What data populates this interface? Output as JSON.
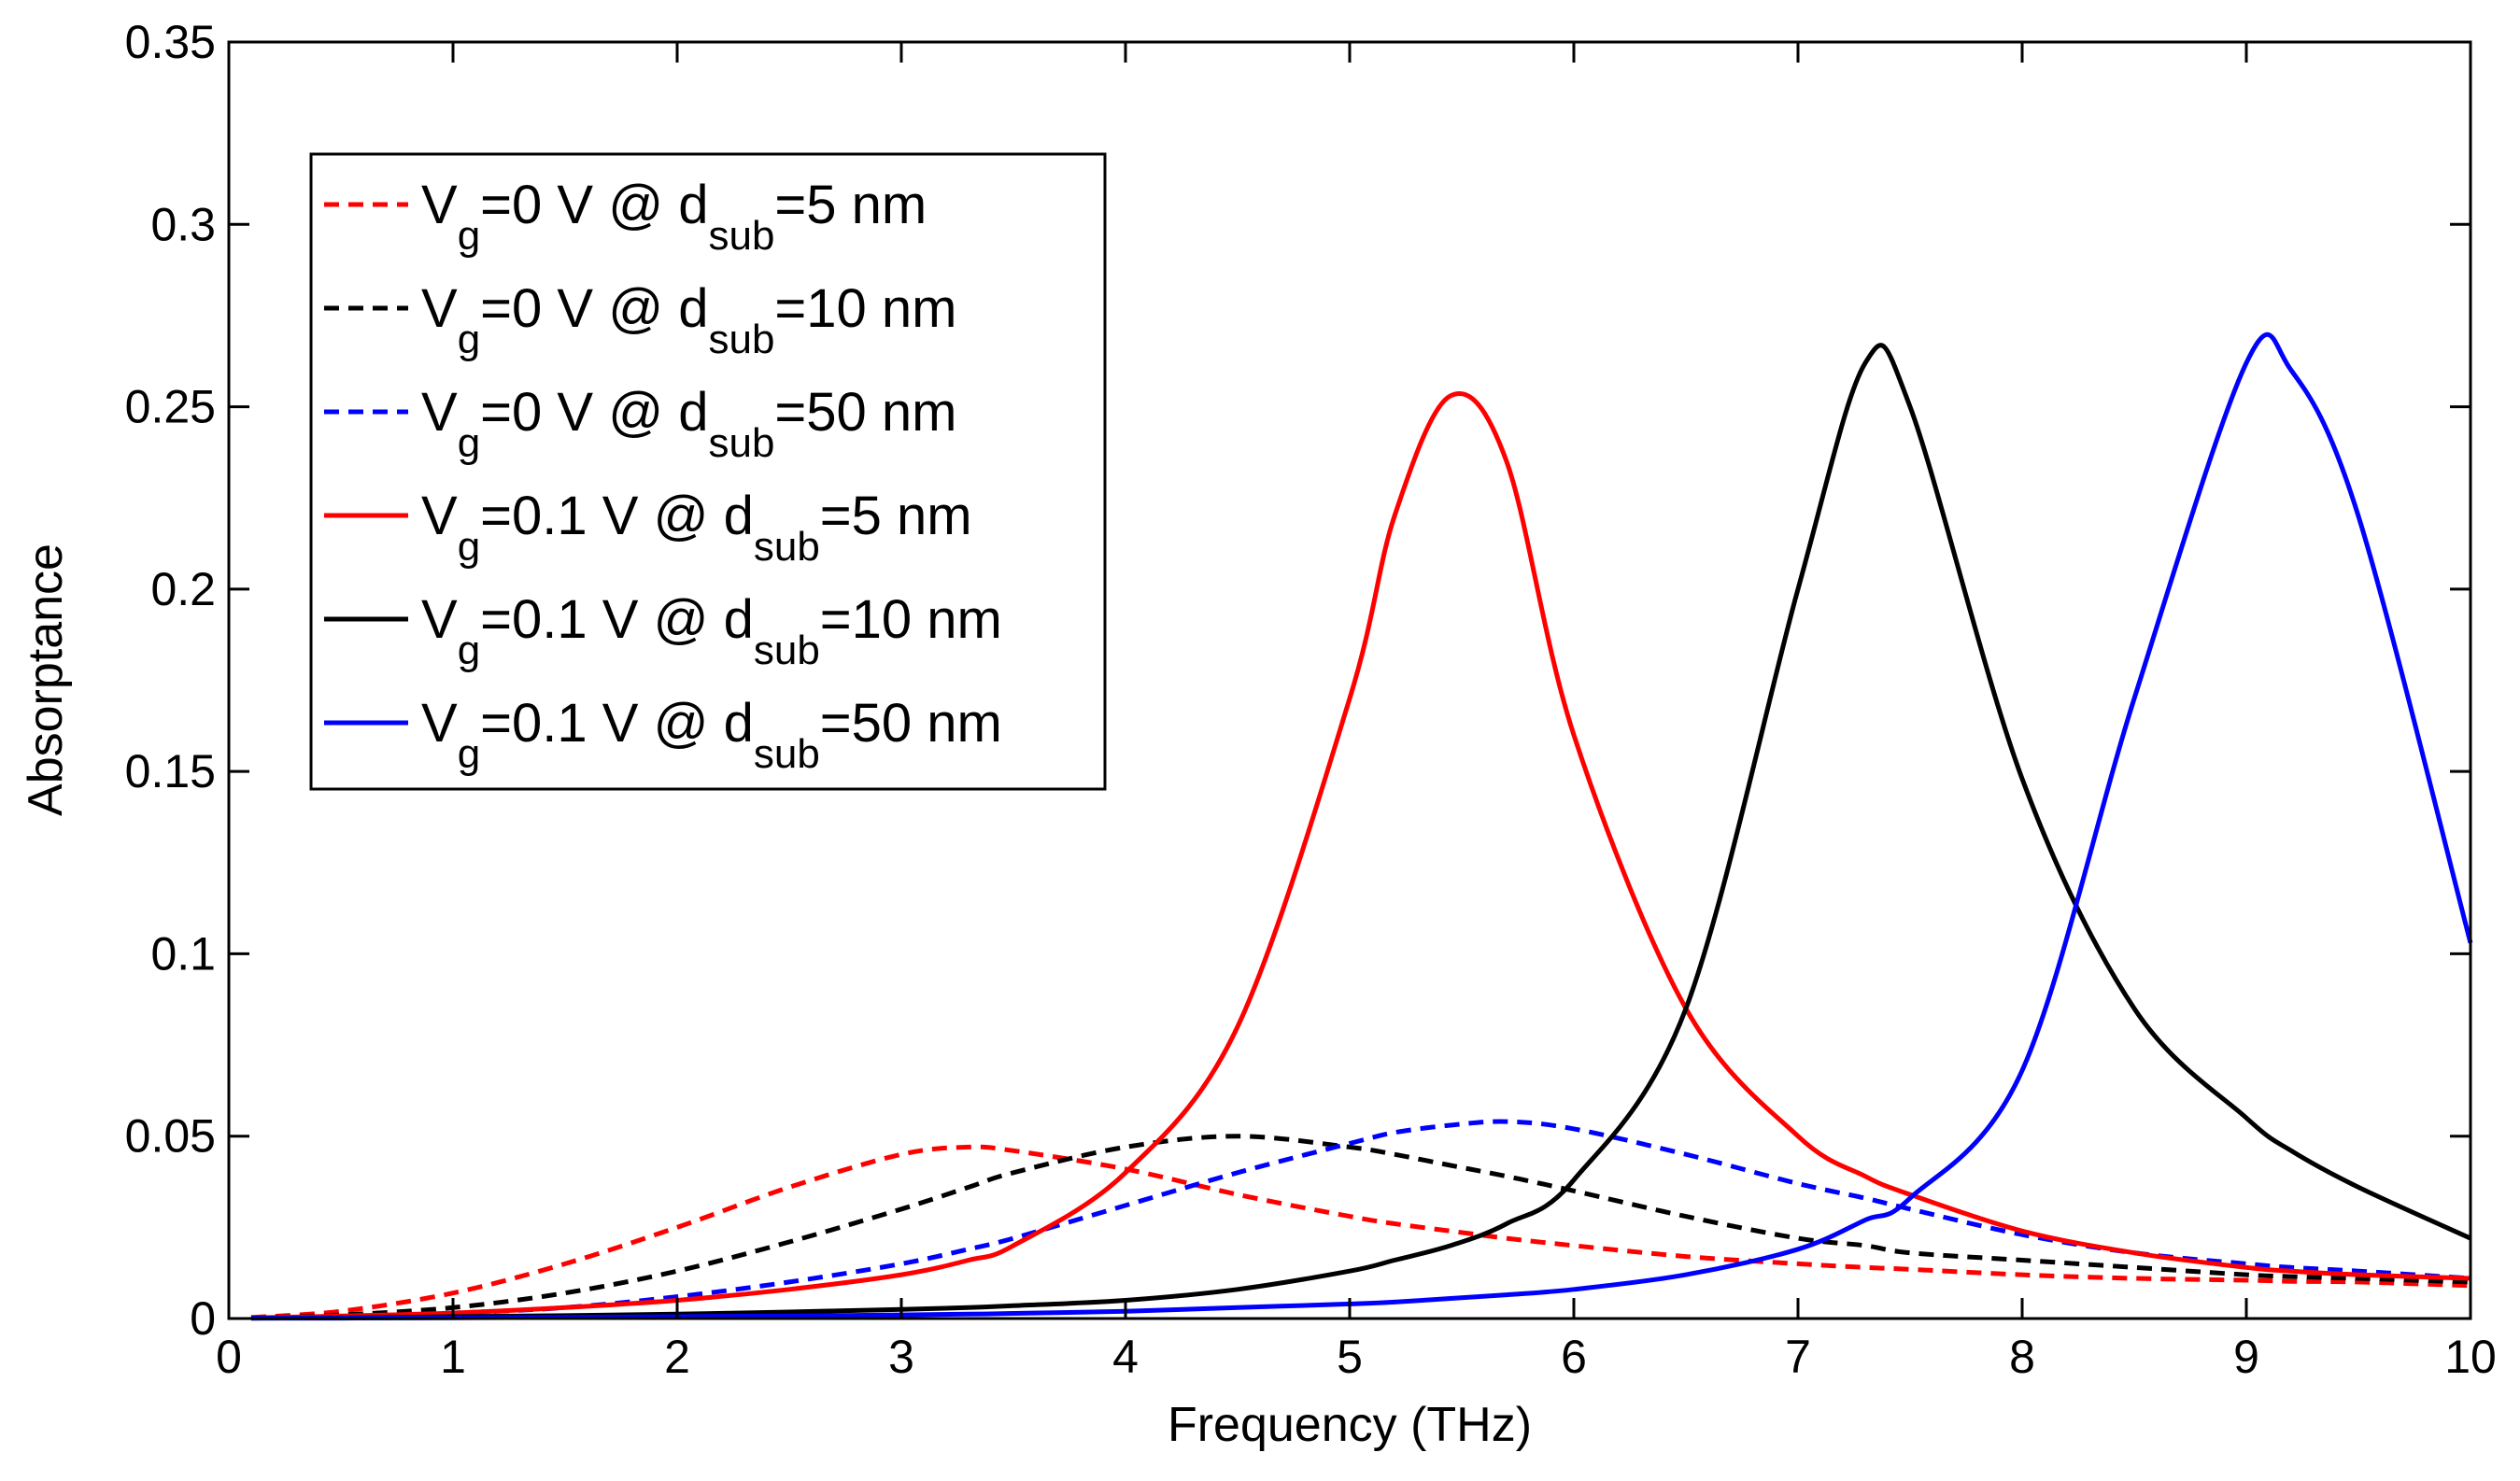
{
  "chart_data": {
    "type": "line",
    "title": "",
    "xlabel": "Frequency (THz)",
    "ylabel": "Absorptance",
    "xlim": [
      0,
      10
    ],
    "ylim": [
      0,
      0.35
    ],
    "xticks": [
      0,
      1,
      2,
      3,
      4,
      5,
      6,
      7,
      8,
      9,
      10
    ],
    "yticks": [
      0,
      0.05,
      0.1,
      0.15,
      0.2,
      0.25,
      0.3,
      0.35
    ],
    "xtick_labels": [
      "0",
      "1",
      "2",
      "3",
      "4",
      "5",
      "6",
      "7",
      "8",
      "9",
      "10"
    ],
    "ytick_labels": [
      "0",
      "0.05",
      "0.1",
      "0.15",
      "0.2",
      "0.25",
      "0.3",
      "0.35"
    ],
    "grid": false,
    "legend_position": "top-left",
    "x": [
      0.1,
      0.5,
      1,
      1.5,
      2,
      2.5,
      3,
      3.3,
      3.5,
      4,
      4.5,
      5,
      5.2,
      5.45,
      5.7,
      6,
      6.5,
      7,
      7.3,
      7.5,
      8,
      8.5,
      9,
      9.2,
      9.5,
      10
    ],
    "series": [
      {
        "name": "Vg=0 V @ dsub=5 nm",
        "color": "#ff0000",
        "style": "dashed",
        "values": [
          0.0003,
          0.002,
          0.007,
          0.015,
          0.025,
          0.036,
          0.045,
          0.047,
          0.046,
          0.041,
          0.034,
          0.028,
          0.026,
          0.024,
          0.022,
          0.02,
          0.017,
          0.015,
          0.014,
          0.0135,
          0.012,
          0.011,
          0.0105,
          0.0102,
          0.01,
          0.009
        ]
      },
      {
        "name": "Vg=0 V @ dsub=10 nm",
        "color": "#000000",
        "style": "dashed",
        "values": [
          0.0002,
          0.001,
          0.003,
          0.007,
          0.013,
          0.021,
          0.03,
          0.036,
          0.04,
          0.047,
          0.05,
          0.047,
          0.045,
          0.042,
          0.039,
          0.035,
          0.028,
          0.022,
          0.02,
          0.018,
          0.016,
          0.014,
          0.012,
          0.0115,
          0.011,
          0.01
        ]
      },
      {
        "name": "Vg=0 V @ dsub=50 nm",
        "color": "#0000ff",
        "style": "dashed",
        "values": [
          0.0001,
          0.0005,
          0.0015,
          0.003,
          0.006,
          0.01,
          0.015,
          0.019,
          0.022,
          0.031,
          0.04,
          0.048,
          0.051,
          0.053,
          0.054,
          0.052,
          0.045,
          0.037,
          0.033,
          0.03,
          0.023,
          0.018,
          0.015,
          0.014,
          0.013,
          0.011
        ]
      },
      {
        "name": "Vg=0.1 V @  dsub=5 nm",
        "color": "#ff0000",
        "style": "solid",
        "values": [
          0.0002,
          0.0007,
          0.0015,
          0.003,
          0.005,
          0.008,
          0.012,
          0.016,
          0.02,
          0.04,
          0.08,
          0.17,
          0.22,
          0.253,
          0.235,
          0.16,
          0.085,
          0.05,
          0.039,
          0.034,
          0.024,
          0.018,
          0.014,
          0.013,
          0.012,
          0.011
        ]
      },
      {
        "name": "Vg=0.1 V @  dsub=10 nm",
        "color": "#000000",
        "style": "solid",
        "values": [
          0.0001,
          0.0002,
          0.0005,
          0.0008,
          0.0012,
          0.0018,
          0.0025,
          0.003,
          0.0035,
          0.005,
          0.008,
          0.013,
          0.016,
          0.02,
          0.026,
          0.038,
          0.085,
          0.2,
          0.262,
          0.25,
          0.148,
          0.085,
          0.055,
          0.046,
          0.036,
          0.022
        ]
      },
      {
        "name": "Vg=0.1 V @  dsub=50 nm",
        "color": "#0000ff",
        "style": "solid",
        "values": [
          0.0001,
          0.0001,
          0.0002,
          0.0003,
          0.0005,
          0.0007,
          0.001,
          0.0012,
          0.0014,
          0.002,
          0.003,
          0.004,
          0.0045,
          0.0055,
          0.0065,
          0.008,
          0.012,
          0.019,
          0.027,
          0.033,
          0.068,
          0.17,
          0.262,
          0.26,
          0.22,
          0.103
        ]
      }
    ],
    "legend": [
      {
        "prefix": "V",
        "sub1": "g",
        "mid": "=0 V @ d",
        "sub2": "sub",
        "suffix": "=5 nm"
      },
      {
        "prefix": "V",
        "sub1": "g",
        "mid": "=0 V @ d",
        "sub2": "sub",
        "suffix": "=10 nm"
      },
      {
        "prefix": "V",
        "sub1": "g",
        "mid": "=0 V @ d",
        "sub2": "sub",
        "suffix": "=50 nm"
      },
      {
        "prefix": "V",
        "sub1": "g",
        "mid": "=0.1 V @  d",
        "sub2": "sub",
        "suffix": "=5 nm"
      },
      {
        "prefix": "V",
        "sub1": "g",
        "mid": "=0.1 V @  d",
        "sub2": "sub",
        "suffix": "=10 nm"
      },
      {
        "prefix": "V",
        "sub1": "g",
        "mid": "=0.1 V @  d",
        "sub2": "sub",
        "suffix": "=50 nm"
      }
    ]
  }
}
